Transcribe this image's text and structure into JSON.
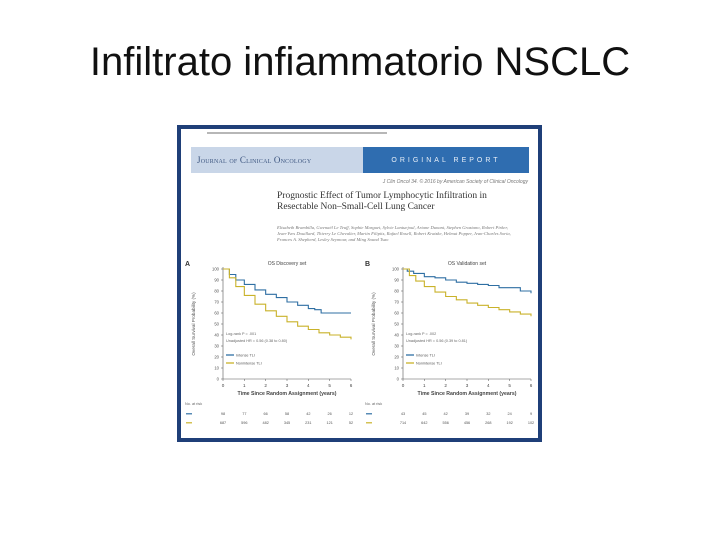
{
  "slide": {
    "title": "Infiltrato infiammatorio  NSCLC"
  },
  "paper": {
    "journal": "Journal of Clinical Oncology",
    "section": "ORIGINAL REPORT",
    "citation": "J Clin Oncol 34. © 2016 by American Society of Clinical Oncology",
    "title_line1": "Prognostic Effect of Tumor Lymphocytic Infiltration in",
    "title_line2": "Resectable Non–Small-Cell Lung Cancer",
    "authors": "Elisabeth Brambilla, Gwenaël Le Teuff, Sophie Marguet, Sylvie Lantuejoul, Ariane Dunant, Stephen Graziano, Robert Pirker, Jean-Yves Douillard, Thierry Le Chevalier, Martin Filipits, Rafael Rosell, Robert Kratzke, Helmut Popper, Jean-Charles Soria, Frances A. Shepherd, Lesley Seymour, and Ming Sound Tsao"
  },
  "chart_data": [
    {
      "type": "line",
      "panel_label": "A",
      "title": "OS Discovery set",
      "xlabel": "Time Since Random Assignment (years)",
      "ylabel": "Overall Survival Probability (%)",
      "xlim": [
        0,
        6
      ],
      "ylim": [
        0,
        100
      ],
      "x_ticks": [
        0,
        1,
        2,
        3,
        4,
        5,
        6
      ],
      "y_ticks": [
        0,
        10,
        20,
        30,
        40,
        50,
        60,
        70,
        80,
        90,
        100
      ],
      "annotation_lines": [
        "Log-rank P = .001",
        "Unadjusted HR = 0.56 (0.38 to 0.80)"
      ],
      "series": [
        {
          "name": "Intense TLI",
          "color": "#2f6fa3",
          "x": [
            0,
            0.3,
            0.6,
            1,
            1.5,
            2,
            2.5,
            3,
            3.5,
            4,
            4.3,
            4.6,
            5,
            5.5,
            6
          ],
          "y": [
            100,
            95,
            90,
            86,
            81,
            77,
            74,
            70,
            67,
            64,
            63,
            60,
            60,
            60,
            60
          ]
        },
        {
          "name": "Nonintense TLI",
          "color": "#c9b22a",
          "x": [
            0,
            0.3,
            0.6,
            1,
            1.5,
            2,
            2.5,
            3,
            3.5,
            4,
            4.5,
            5,
            5.5,
            6
          ],
          "y": [
            100,
            92,
            84,
            76,
            68,
            62,
            57,
            52,
            48,
            45,
            42,
            40,
            38,
            36
          ]
        }
      ],
      "at_risk": {
        "label": "No. at risk",
        "rows": [
          {
            "color": "#2f6fa3",
            "values": [
              "98",
              "77",
              "66",
              "58",
              "42",
              "26",
              "12"
            ]
          },
          {
            "color": "#c9b22a",
            "values": [
              "687",
              "596",
              "482",
              "345",
              "231",
              "121",
              "52"
            ]
          }
        ]
      }
    },
    {
      "type": "line",
      "panel_label": "B",
      "title": "OS Validation set",
      "xlabel": "Time Since Random Assignment (years)",
      "ylabel": "Overall Survival Probability (%)",
      "xlim": [
        0,
        6
      ],
      "ylim": [
        0,
        100
      ],
      "x_ticks": [
        0,
        1,
        2,
        3,
        4,
        5,
        6
      ],
      "y_ticks": [
        0,
        10,
        20,
        30,
        40,
        50,
        60,
        70,
        80,
        90,
        100
      ],
      "annotation_lines": [
        "Log-rank P = .002",
        "Unadjusted HR = 0.56 (0.39 to 0.81)"
      ],
      "series": [
        {
          "name": "Intense TLI",
          "color": "#2f6fa3",
          "x": [
            0,
            0.2,
            0.5,
            1,
            1.5,
            2,
            2.5,
            3,
            3.5,
            4,
            4.5,
            5,
            5.5,
            6
          ],
          "y": [
            100,
            98,
            96,
            93,
            92,
            90,
            88,
            87,
            86,
            85,
            83,
            83,
            80,
            78
          ]
        },
        {
          "name": "Nonintense TLI",
          "color": "#c9b22a",
          "x": [
            0,
            0.3,
            0.6,
            1,
            1.5,
            2,
            2.5,
            3,
            3.5,
            4,
            4.5,
            5,
            5.5,
            6
          ],
          "y": [
            100,
            94,
            89,
            84,
            79,
            75,
            72,
            69,
            67,
            65,
            63,
            61,
            59,
            57
          ]
        }
      ],
      "at_risk": {
        "label": "No. at risk",
        "rows": [
          {
            "color": "#2f6fa3",
            "values": [
              "43",
              "45",
              "42",
              "39",
              "32",
              "24",
              "9"
            ]
          },
          {
            "color": "#c9b22a",
            "values": [
              "714",
              "642",
              "556",
              "456",
              "268",
              "192",
              "102"
            ]
          }
        ]
      }
    }
  ]
}
